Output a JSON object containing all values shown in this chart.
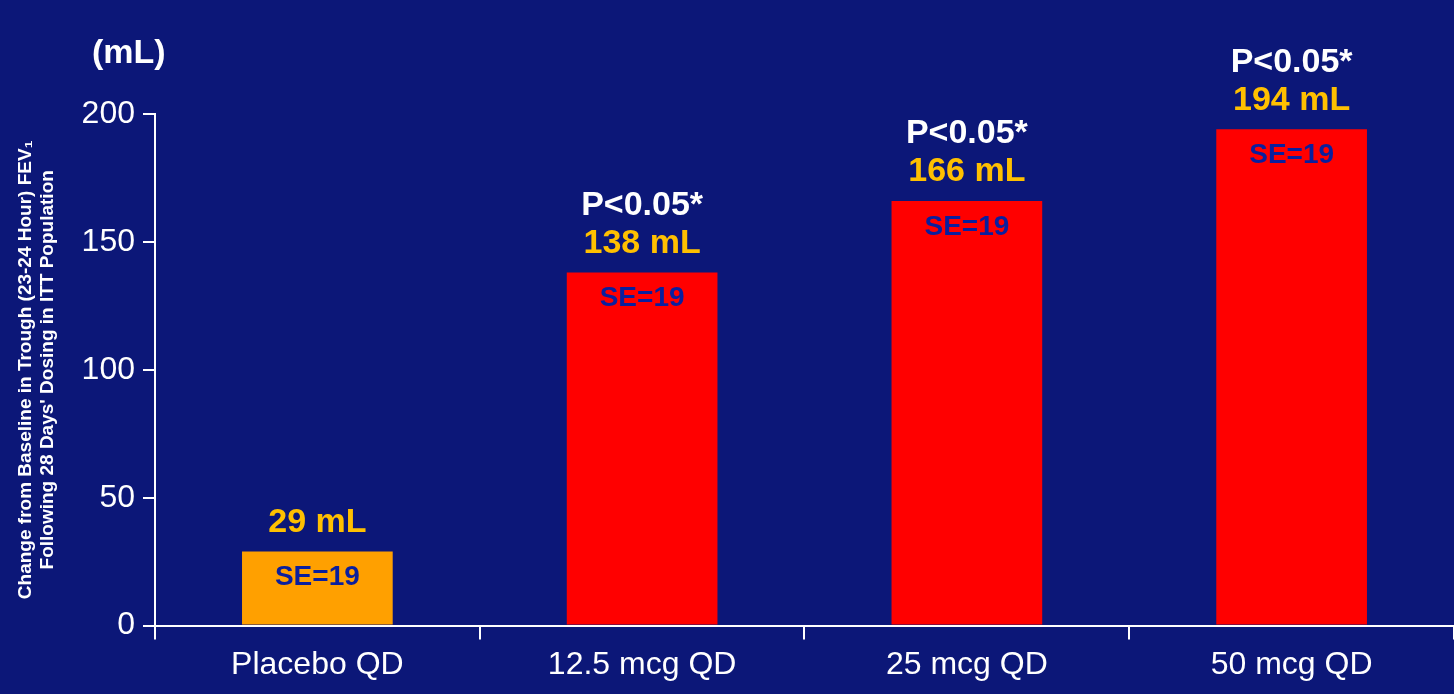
{
  "chart_data": {
    "type": "bar",
    "ylabel": "Change from Baseline in Trough (23-24 Hour) FEV₁\nFollowing 28 Days' Dosing in ITT Population",
    "categories": [
      "Placebo QD",
      "12.5 mcg QD",
      "25 mcg QD",
      "50 mcg QD"
    ],
    "values": [
      29,
      138,
      166,
      194
    ],
    "colors": [
      "#ffa000",
      "#ff0000",
      "#ff0000",
      "#ff0000"
    ],
    "value_labels": [
      "29 mL",
      "138 mL",
      "166 mL",
      "194 mL"
    ],
    "ylim": [
      0,
      200
    ],
    "yticks": [
      0,
      50,
      100,
      150,
      200
    ],
    "grid": false,
    "legend": false,
    "annotations": [
      "(mL)",
      {
        "text": "SE=19",
        "x": "Placebo QD",
        "y": 29
      },
      {
        "text": "SE=19",
        "x": "12.5 mcg QD",
        "y": 138
      },
      {
        "text": "SE=19",
        "x": "25 mcg QD",
        "y": 166
      },
      {
        "text": "SE=19",
        "x": "50 mcg QD",
        "y": 194
      },
      {
        "text": "P<0.05*",
        "x": "12.5 mcg QD",
        "y": 138
      },
      {
        "text": "P<0.05*",
        "x": "25 mcg QD",
        "y": 166
      },
      {
        "text": "P<0.05*",
        "x": "50 mcg QD",
        "y": 194
      }
    ]
  }
}
